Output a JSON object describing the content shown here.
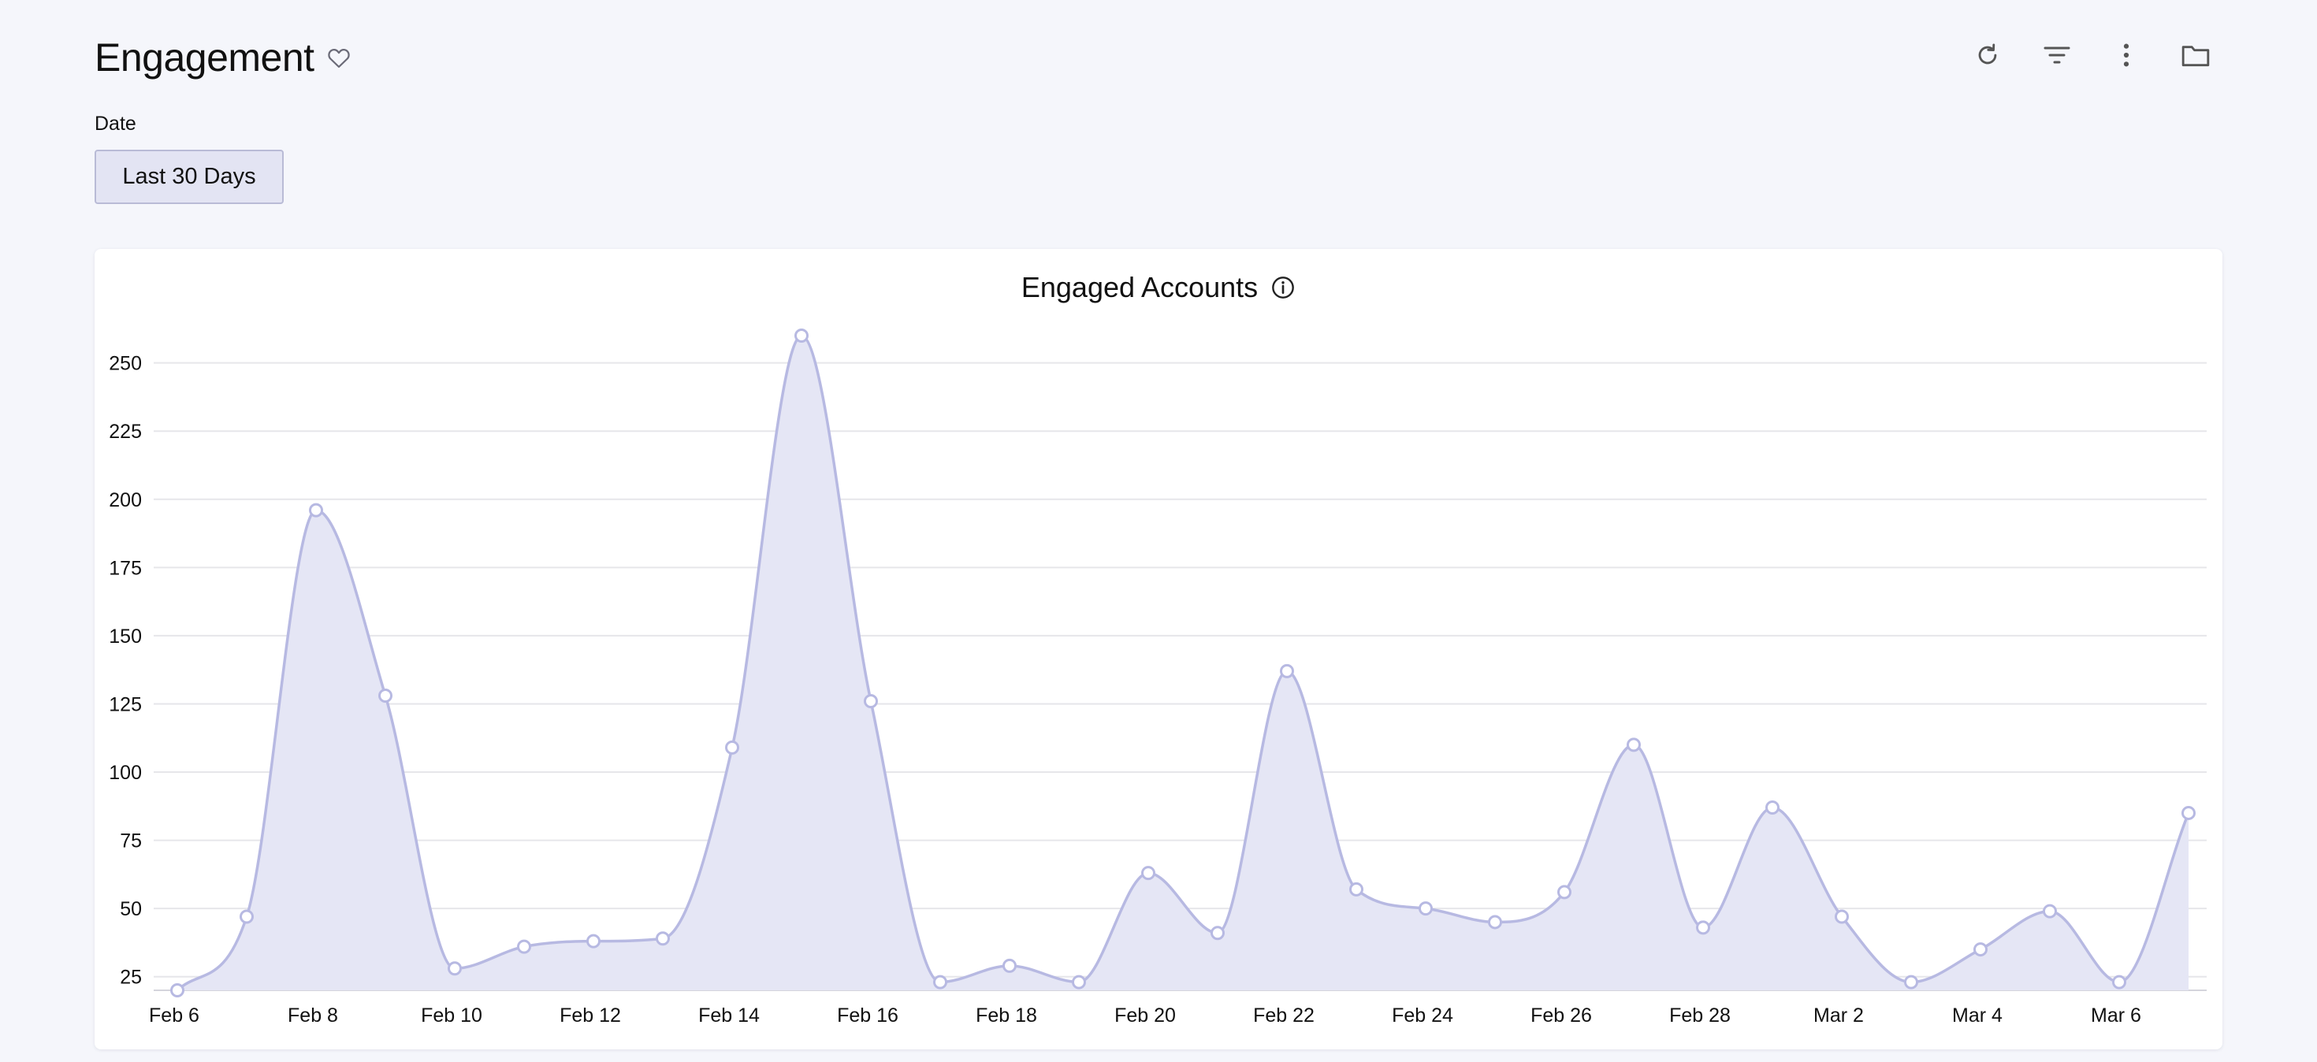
{
  "page": {
    "title": "Engagement"
  },
  "icons": {
    "favorite": "heart-outline-icon",
    "refresh": "refresh-icon",
    "filter": "filter-icon",
    "more": "more-vertical-icon",
    "folder": "folder-icon",
    "info": "info-icon"
  },
  "filters": {
    "date_label": "Date",
    "date_value": "Last 30 Days"
  },
  "colors": {
    "series_fill": "#e5e6f5",
    "series_line": "#b7b9e2",
    "grid": "#e6e6ea",
    "marker_stroke": "#b7b9e2"
  },
  "chart_data": {
    "type": "area",
    "title": "Engaged Accounts",
    "xlabel": "",
    "ylabel": "",
    "ylim": [
      20,
      260
    ],
    "yticks": [
      25,
      50,
      75,
      100,
      125,
      150,
      175,
      200,
      225,
      250
    ],
    "xticks": [
      "Feb 6",
      "Feb 8",
      "Feb 10",
      "Feb 12",
      "Feb 14",
      "Feb 16",
      "Feb 18",
      "Feb 20",
      "Feb 22",
      "Feb 24",
      "Feb 26",
      "Feb 28",
      "Mar 2",
      "Mar 4",
      "Mar 6"
    ],
    "grid": true,
    "legend": "none",
    "x": [
      "Feb 6",
      "Feb 7",
      "Feb 8",
      "Feb 9",
      "Feb 10",
      "Feb 11",
      "Feb 12",
      "Feb 13",
      "Feb 14",
      "Feb 15",
      "Feb 16",
      "Feb 17",
      "Feb 18",
      "Feb 19",
      "Feb 20",
      "Feb 21",
      "Feb 22",
      "Feb 23",
      "Feb 24",
      "Feb 25",
      "Feb 26",
      "Feb 27",
      "Feb 28",
      "Mar 1",
      "Mar 2",
      "Mar 3",
      "Mar 4",
      "Mar 5",
      "Mar 6",
      "Mar 7"
    ],
    "values": [
      20,
      47,
      196,
      128,
      28,
      36,
      38,
      39,
      109,
      260,
      126,
      23,
      29,
      23,
      63,
      41,
      137,
      57,
      50,
      45,
      56,
      110,
      43,
      87,
      47,
      23,
      35,
      49,
      23,
      85
    ]
  }
}
